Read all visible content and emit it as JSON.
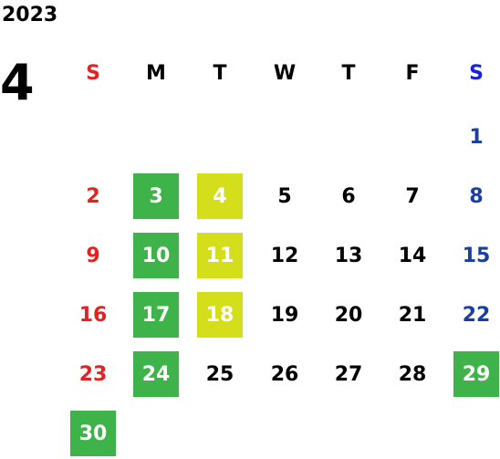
{
  "year": "2023",
  "month": "4",
  "weekdays": [
    "S",
    "M",
    "T",
    "W",
    "T",
    "F",
    "S"
  ],
  "weeks": [
    [
      {
        "day": ""
      },
      {
        "day": ""
      },
      {
        "day": ""
      },
      {
        "day": ""
      },
      {
        "day": ""
      },
      {
        "day": ""
      },
      {
        "day": "1"
      }
    ],
    [
      {
        "day": "2"
      },
      {
        "day": "3",
        "highlight": "green"
      },
      {
        "day": "4",
        "highlight": "yellow"
      },
      {
        "day": "5"
      },
      {
        "day": "6"
      },
      {
        "day": "7"
      },
      {
        "day": "8"
      }
    ],
    [
      {
        "day": "9"
      },
      {
        "day": "10",
        "highlight": "green"
      },
      {
        "day": "11",
        "highlight": "yellow"
      },
      {
        "day": "12"
      },
      {
        "day": "13"
      },
      {
        "day": "14"
      },
      {
        "day": "15"
      }
    ],
    [
      {
        "day": "16"
      },
      {
        "day": "17",
        "highlight": "green"
      },
      {
        "day": "18",
        "highlight": "yellow"
      },
      {
        "day": "19"
      },
      {
        "day": "20"
      },
      {
        "day": "21"
      },
      {
        "day": "22"
      }
    ],
    [
      {
        "day": "23"
      },
      {
        "day": "24",
        "highlight": "green"
      },
      {
        "day": "25"
      },
      {
        "day": "26"
      },
      {
        "day": "27"
      },
      {
        "day": "28"
      },
      {
        "day": "29",
        "highlight": "green"
      }
    ],
    [
      {
        "day": "30",
        "highlight": "green"
      },
      {
        "day": ""
      },
      {
        "day": ""
      },
      {
        "day": ""
      },
      {
        "day": ""
      },
      {
        "day": ""
      },
      {
        "day": ""
      }
    ]
  ],
  "colors": {
    "sunday": "#e12323",
    "saturday": "#1a3fa0",
    "saturday_header": "#1a22d9",
    "green_highlight": "#3db34a",
    "yellow_highlight": "#d5de1b"
  }
}
